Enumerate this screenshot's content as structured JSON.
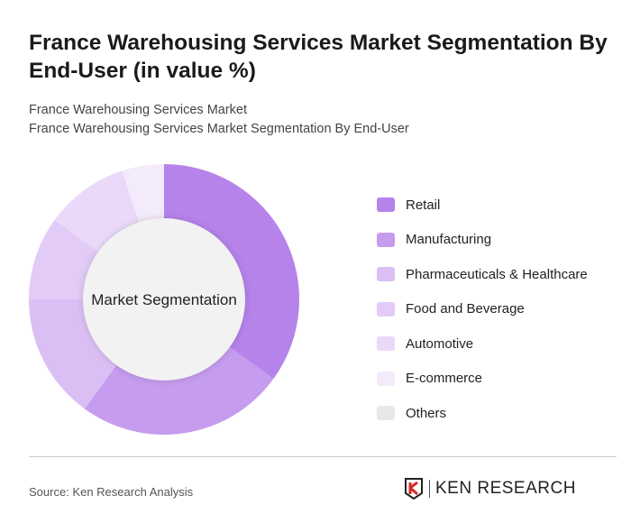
{
  "chart_data": {
    "type": "pie",
    "title": "France Warehousing Services Market Segmentation By End-User (in value %)",
    "subtitle_lines": [
      "France Warehousing Services Market",
      "France Warehousing Services Market Segmentation By End-User"
    ],
    "center_label": "Market Segmentation",
    "legend_position": "right",
    "categories": [
      "Retail",
      "Manufacturing",
      "Pharmaceuticals & Healthcare",
      "Food and Beverage",
      "Automotive",
      "E-commerce",
      "Others"
    ],
    "values": [
      35,
      25,
      15,
      10,
      10,
      5,
      0
    ],
    "colors": [
      "#b583ea",
      "#c59cee",
      "#dabff5",
      "#e2cbf7",
      "#ead9f9",
      "#f3eafb",
      "#e8e8e8"
    ]
  },
  "footer": {
    "source": "Source: Ken Research Analysis",
    "logo": "KEN RESEARCH"
  }
}
